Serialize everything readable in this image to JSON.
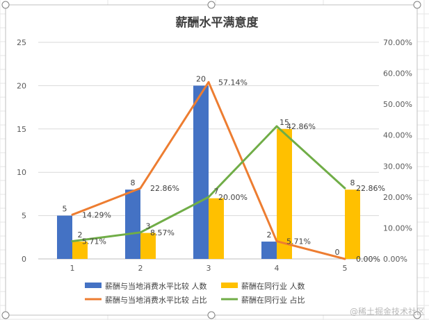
{
  "colors": {
    "series1_bar": "#4472C4",
    "series2_bar": "#FFC000",
    "series1_line": "#ED7D31",
    "series2_line": "#70AD47",
    "gridline": "#D9D9D9",
    "axis_text": "#595959",
    "sheet_grid": "#E6E6E6"
  },
  "watermark": "@稀土掘金技术社区",
  "chart_data": {
    "type": "bar",
    "title": "薪酬水平满意度",
    "categories": [
      "1",
      "2",
      "3",
      "4",
      "5"
    ],
    "primary_axis": {
      "ylim": [
        0,
        25
      ],
      "ticks": [
        "0",
        "5",
        "10",
        "15",
        "20",
        "25"
      ]
    },
    "secondary_axis": {
      "ylim": [
        0,
        70
      ],
      "ticks": [
        "0.00%",
        "10.00%",
        "20.00%",
        "30.00%",
        "40.00%",
        "50.00%",
        "60.00%",
        "70.00%"
      ]
    },
    "series": [
      {
        "name": "薪酬与当地消费水平比较 人数",
        "kind": "bar",
        "axis": "primary",
        "values": [
          5,
          8,
          20,
          2,
          0
        ],
        "labels": [
          "5",
          "8",
          "20",
          "2",
          "0"
        ]
      },
      {
        "name": "薪酬在同行业 人数",
        "kind": "bar",
        "axis": "primary",
        "values": [
          2,
          3,
          7,
          15,
          8
        ],
        "labels": [
          "2",
          "3",
          "7",
          "15",
          "8"
        ]
      },
      {
        "name": "薪酬与当地消费水平比较 占比",
        "kind": "line",
        "axis": "secondary",
        "values": [
          14.29,
          22.86,
          57.14,
          5.71,
          0
        ],
        "labels": [
          "14.29%",
          "22.86%",
          "57.14%",
          "5.71%",
          "0.00%"
        ]
      },
      {
        "name": "薪酬在同行业 占比",
        "kind": "line",
        "axis": "secondary",
        "values": [
          5.71,
          8.57,
          20.0,
          42.86,
          22.86
        ],
        "labels": [
          "5.71%",
          "8.57%",
          "20.00%",
          "42.86%",
          "22.86%"
        ]
      }
    ],
    "legend": {
      "placement": "bottom"
    }
  }
}
